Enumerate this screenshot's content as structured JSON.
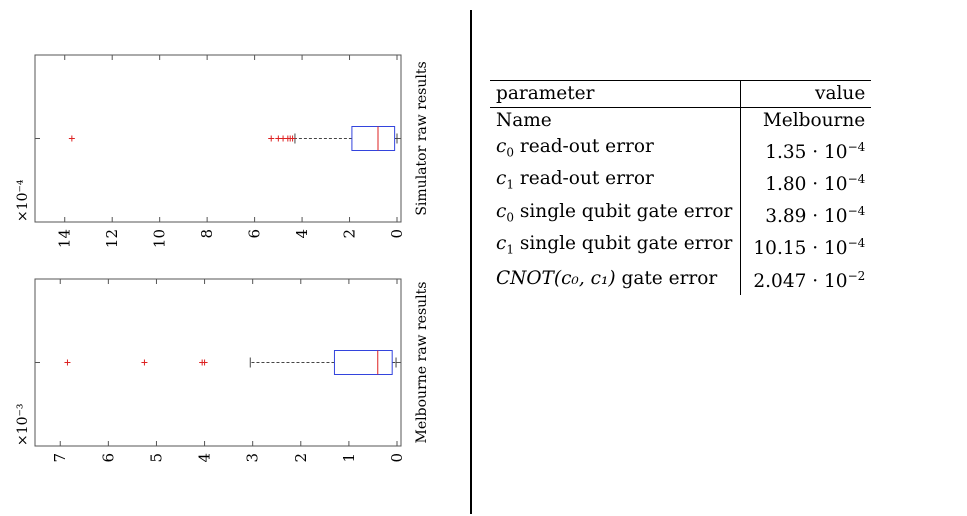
{
  "chart_data": [
    {
      "type": "boxplot",
      "orientation": "horizontal",
      "x_axis_direction": "reversed",
      "axis_exponent_label": "×10⁻⁴",
      "side_label": "Simulator raw results",
      "xlim": [
        0,
        15
      ],
      "ticks": [
        14,
        12,
        10,
        8,
        6,
        4,
        2,
        0
      ],
      "tick_labels": [
        "14",
        "12",
        "10",
        "8",
        "6",
        "4",
        "2",
        "0"
      ],
      "box": {
        "min": 0,
        "q1": 0.1,
        "median": 0.8,
        "q3": 1.9,
        "whisker_high": 4.3
      },
      "outliers": [
        4.4,
        4.5,
        4.6,
        4.8,
        5.0,
        5.3,
        13.7
      ],
      "colors": {
        "box": "#3344dd",
        "median": "#dd2222",
        "outlier": "#dd2222",
        "whisker": "#444444"
      }
    },
    {
      "type": "boxplot",
      "orientation": "horizontal",
      "x_axis_direction": "reversed",
      "axis_exponent_label": "×10⁻³",
      "side_label": "Melbourne raw results",
      "xlim": [
        0,
        7.4
      ],
      "ticks": [
        7,
        6,
        5,
        4,
        3,
        2,
        1,
        0
      ],
      "tick_labels": [
        "7",
        "6",
        "5",
        "4",
        "3",
        "2",
        "1",
        "0"
      ],
      "box": {
        "min": 0.02,
        "q1": 0.1,
        "median": 0.4,
        "q3": 1.3,
        "whisker_high": 3.05
      },
      "outliers": [
        4.0,
        4.05,
        5.25,
        6.85
      ],
      "colors": {
        "box": "#3344dd",
        "median": "#dd2222",
        "outlier": "#dd2222",
        "whisker": "#444444"
      }
    }
  ],
  "table": {
    "header": {
      "parameter": "parameter",
      "value": "value"
    },
    "rows": [
      {
        "param_sym": "",
        "param_sub": "",
        "param_text": "Name",
        "val_mant": "Melbourne",
        "val_exp": ""
      },
      {
        "param_sym": "c",
        "param_sub": "0",
        "param_text": " read-out error",
        "val_mant": "1.35 · 10",
        "val_exp": "−4"
      },
      {
        "param_sym": "c",
        "param_sub": "1",
        "param_text": " read-out error",
        "val_mant": "1.80 · 10",
        "val_exp": "−4"
      },
      {
        "param_sym": "c",
        "param_sub": "0",
        "param_text": " single qubit gate error",
        "val_mant": "3.89 · 10",
        "val_exp": "−4"
      },
      {
        "param_sym": "c",
        "param_sub": "1",
        "param_text": " single qubit gate error",
        "val_mant": "10.15 · 10",
        "val_exp": "−4"
      },
      {
        "param_sym": "CNOT(c₀, c₁)",
        "param_sub": "",
        "param_text": " gate error",
        "val_mant": "2.047 · 10",
        "val_exp": "−2"
      }
    ]
  }
}
